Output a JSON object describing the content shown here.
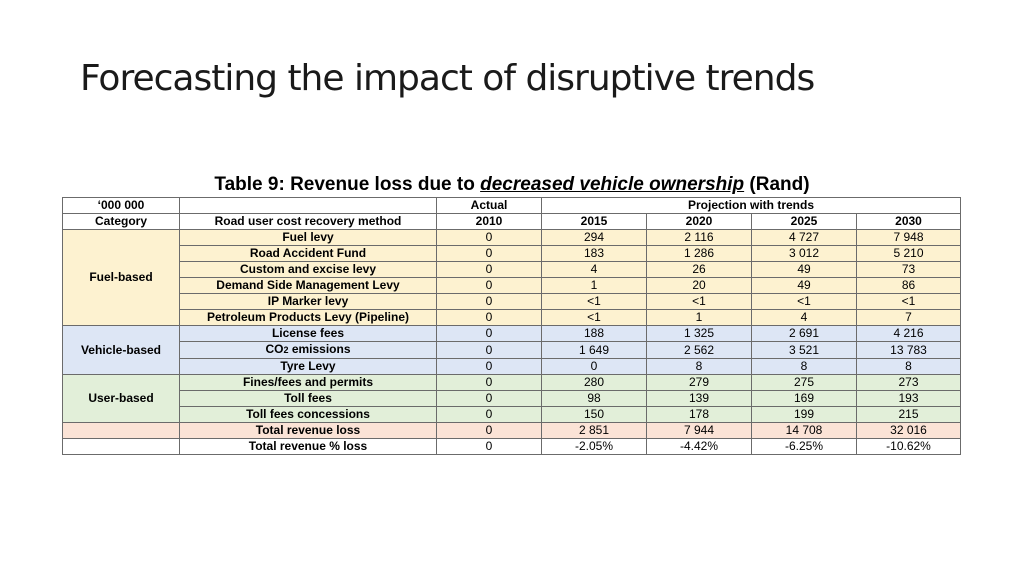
{
  "slide": {
    "title": "Forecasting the impact of disruptive trends"
  },
  "caption": {
    "prefix": "Table 9: Revenue loss due to ",
    "emphasis": "decreased vehicle ownership",
    "suffix": " (Rand)"
  },
  "table": {
    "header1": {
      "units": "‘000 000",
      "actual": "Actual",
      "projection": "Projection with trends"
    },
    "header2": {
      "category": "Category",
      "method": "Road user cost recovery method",
      "years": [
        "2010",
        "2015",
        "2020",
        "2025",
        "2030"
      ]
    },
    "groups": {
      "fuel": "Fuel-based",
      "vehicle": "Vehicle-based",
      "user": "User-based"
    },
    "rows": [
      {
        "method": "Fuel levy",
        "values": [
          "0",
          "294",
          "2 116",
          "4 727",
          "7 948"
        ]
      },
      {
        "method": "Road Accident Fund",
        "values": [
          "0",
          "183",
          "1 286",
          "3 012",
          "5 210"
        ]
      },
      {
        "method": "Custom and excise levy",
        "values": [
          "0",
          "4",
          "26",
          "49",
          "73"
        ]
      },
      {
        "method": "Demand Side Management Levy",
        "values": [
          "0",
          "1",
          "20",
          "49",
          "86"
        ]
      },
      {
        "method": "IP Marker levy",
        "values": [
          "0",
          "<1",
          "<1",
          "<1",
          "<1"
        ]
      },
      {
        "method": "Petroleum Products Levy (Pipeline)",
        "values": [
          "0",
          "<1",
          "1",
          "4",
          "7"
        ]
      },
      {
        "method": "License fees",
        "values": [
          "0",
          "188",
          "1 325",
          "2 691",
          "4 216"
        ]
      },
      {
        "method_co": "CO",
        "method_sub": "2",
        "method_rest": " emissions",
        "values": [
          "0",
          "1 649",
          "2 562",
          "3 521",
          "13 783"
        ]
      },
      {
        "method": "Tyre Levy",
        "values": [
          "0",
          "0",
          "8",
          "8",
          "8"
        ]
      },
      {
        "method": "Fines/fees and permits",
        "values": [
          "0",
          "280",
          "279",
          "275",
          "273"
        ]
      },
      {
        "method": "Toll fees",
        "values": [
          "0",
          "98",
          "139",
          "169",
          "193"
        ]
      },
      {
        "method": "Toll fees concessions",
        "values": [
          "0",
          "150",
          "178",
          "199",
          "215"
        ]
      },
      {
        "method": "Total revenue loss",
        "values": [
          "0",
          "2 851",
          "7 944",
          "14 708",
          "32 016"
        ]
      },
      {
        "method": "Total revenue % loss",
        "values": [
          "0",
          "-2.05%",
          "-4.42%",
          "-6.25%",
          "-10.62%"
        ]
      }
    ]
  },
  "colors": {
    "fuel_fill": "#fdf2d0",
    "vehicle_fill": "#dde6f5",
    "user_fill": "#e2efd9",
    "total_fill": "#fbe3d6"
  }
}
